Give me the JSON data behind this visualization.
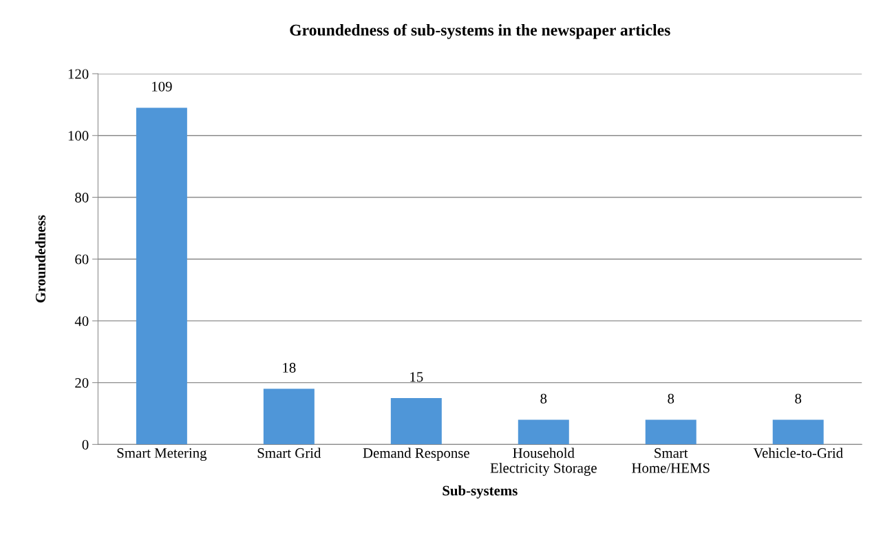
{
  "chart_data": {
    "type": "bar",
    "title": "Groundedness of sub-systems in the newspaper articles",
    "xlabel": "Sub-systems",
    "ylabel": "Groundedness",
    "categories": [
      "Smart Metering",
      "Smart Grid",
      "Demand Response",
      "Household\nElectricity Storage",
      "Smart\nHome/HEMS",
      "Vehicle-to-Grid"
    ],
    "values": [
      109,
      18,
      15,
      8,
      8,
      8
    ],
    "color": "#4f96d8",
    "ylim": [
      0,
      120
    ],
    "yticks": [
      0,
      20,
      40,
      60,
      80,
      100,
      120
    ],
    "grid": "y",
    "data_labels": true
  }
}
